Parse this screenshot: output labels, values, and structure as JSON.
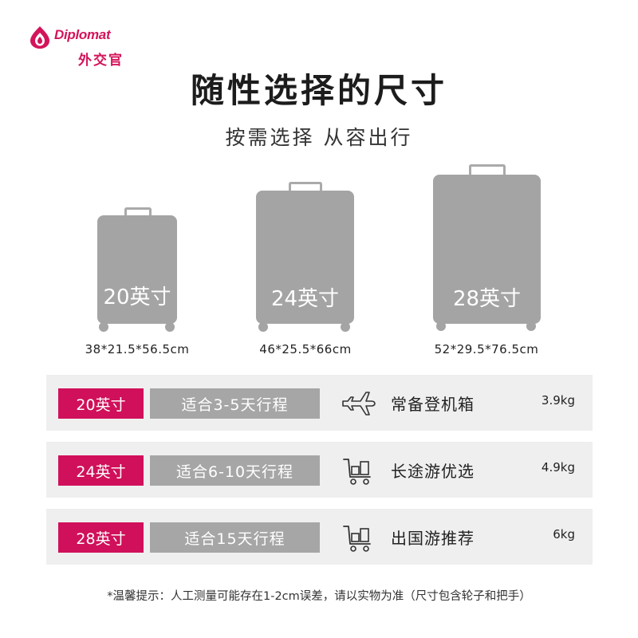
{
  "brand": {
    "name": "Diplomat",
    "name_cn": "外交官",
    "accent": "#d0105a"
  },
  "title": "随性选择的尺寸",
  "subtitle": "按需选择 从容出行",
  "suitcases": [
    {
      "label": "20英寸",
      "dims": "38*21.5*56.5cm"
    },
    {
      "label": "24英寸",
      "dims": "46*25.5*66cm"
    },
    {
      "label": "28英寸",
      "dims": "52*29.5*76.5cm"
    }
  ],
  "rows": [
    {
      "size": "20英寸",
      "trip": "适合3-5天行程",
      "icon": "airplane-icon",
      "usage": "常备登机箱",
      "weight": "3.9kg"
    },
    {
      "size": "24英寸",
      "trip": "适合6-10天行程",
      "icon": "luggage-cart-icon",
      "usage": "长途游优选",
      "weight": "4.9kg"
    },
    {
      "size": "28英寸",
      "trip": "适合15天行程",
      "icon": "luggage-cart-icon",
      "usage": "出国游推荐",
      "weight": "6kg"
    }
  ],
  "footnote": "*温馨提示：人工测量可能存在1-2cm误差，请以实物为准（尺寸包含轮子和把手）",
  "colors": {
    "suitcase": "#a4a4a4",
    "row_bg": "#efefef",
    "trip_bg": "#a6a6a6"
  }
}
